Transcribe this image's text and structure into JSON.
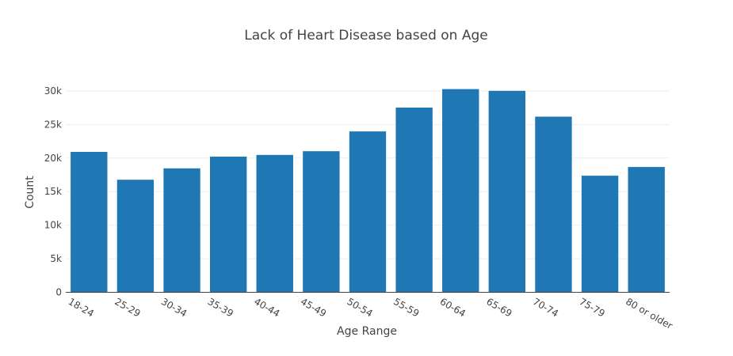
{
  "chart_data": {
    "type": "bar",
    "title": "Lack of Heart Disease based on Age",
    "xlabel": "Age Range",
    "ylabel": "Count",
    "categories": [
      "18-24",
      "25-29",
      "30-34",
      "35-39",
      "40-44",
      "45-49",
      "50-54",
      "55-59",
      "60-64",
      "65-69",
      "70-74",
      "75-79",
      "80 or older"
    ],
    "values": [
      20950,
      16800,
      18500,
      20250,
      20500,
      21050,
      24000,
      27550,
      30300,
      30050,
      26200,
      17400,
      18700
    ],
    "ylim": [
      0,
      33000
    ],
    "yticks": [
      0,
      5000,
      10000,
      15000,
      20000,
      25000,
      30000
    ],
    "ytick_labels": [
      "0",
      "5k",
      "10k",
      "15k",
      "20k",
      "25k",
      "30k"
    ],
    "grid": true,
    "color": "#1f77b4"
  }
}
